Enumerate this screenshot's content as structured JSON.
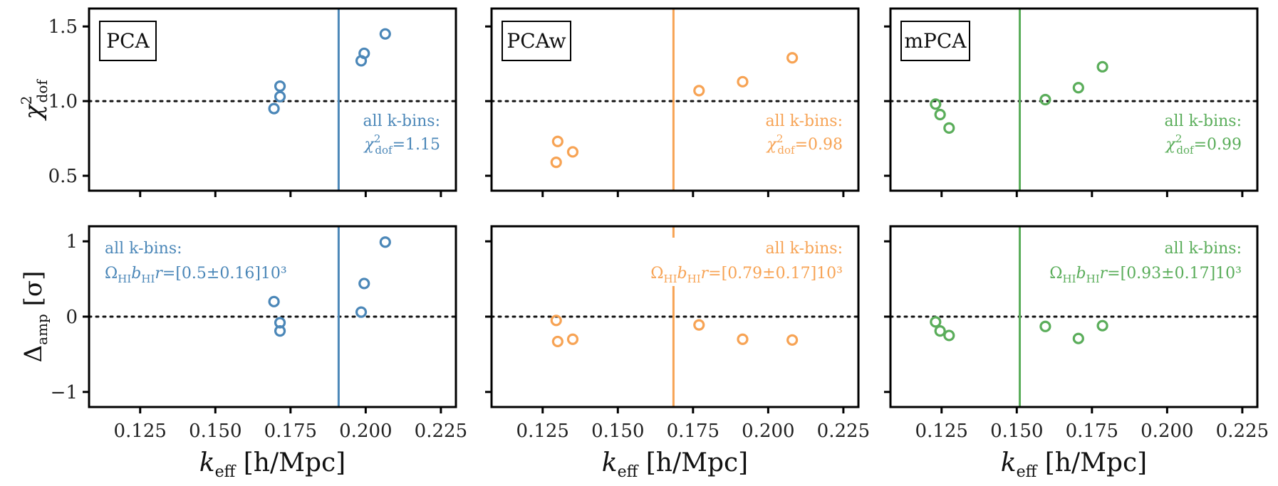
{
  "chart_data": {
    "type": "scatter",
    "figure": "2x3 grid of scatter panels with reference lines",
    "x_axis": {
      "label": "k_eff [h/Mpc]",
      "label_parts": {
        "k": "k",
        "sub": "eff",
        "rest": "[h/Mpc]"
      },
      "ticks": [
        0.125,
        0.15,
        0.175,
        0.2,
        0.225
      ],
      "tick_labels": [
        "0.125",
        "0.150",
        "0.175",
        "0.200",
        "0.225"
      ],
      "xlim": [
        0.108,
        0.23
      ]
    },
    "rows": [
      {
        "name": "chi2",
        "ylabel": "χ²_dof",
        "ylabel_parts": {
          "sym": "χ",
          "sup": "2",
          "sub": "dof"
        },
        "ylim": [
          0.4,
          1.62
        ],
        "ticks": [
          0.5,
          1.0,
          1.5
        ],
        "tick_labels": [
          "0.5",
          "1.0",
          "1.5"
        ],
        "reference_line": 1.0
      },
      {
        "name": "delta_amp",
        "ylabel": "Δ_amp [σ]",
        "ylabel_parts": {
          "sym": "Δ",
          "sub": "amp",
          "rest": "[σ]"
        },
        "ylim": [
          -1.2,
          1.2
        ],
        "ticks": [
          -1,
          0,
          1
        ],
        "tick_labels": [
          "−1",
          "0",
          "1"
        ],
        "reference_line": 0.0
      }
    ],
    "panels": [
      {
        "method": "PCA",
        "color": "#4b87b8",
        "vline": 0.191,
        "chi2": {
          "x": [
            0.1695,
            0.1715,
            0.1715,
            0.1985,
            0.1995,
            0.2065
          ],
          "y": [
            0.95,
            1.03,
            1.1,
            1.27,
            1.32,
            1.45
          ],
          "annotation_line1": "all k-bins:",
          "annotation_value": "=1.15"
        },
        "delta": {
          "x": [
            0.1695,
            0.1715,
            0.1715,
            0.1985,
            0.1995,
            0.2065
          ],
          "y": [
            0.2,
            -0.08,
            -0.19,
            0.06,
            0.44,
            0.99
          ],
          "annotation_line1": "all k-bins:",
          "annotation_value": "=[0.5±0.16]10³"
        }
      },
      {
        "method": "PCAw",
        "color": "#f7a354",
        "vline": 0.1685,
        "chi2": {
          "x": [
            0.1295,
            0.13,
            0.135,
            0.177,
            0.1915,
            0.208
          ],
          "y": [
            0.59,
            0.73,
            0.66,
            1.07,
            1.13,
            1.29
          ],
          "annotation_line1": "all k-bins:",
          "annotation_value": "=0.98"
        },
        "delta": {
          "x": [
            0.1295,
            0.13,
            0.135,
            0.177,
            0.1915,
            0.208
          ],
          "y": [
            -0.05,
            -0.33,
            -0.3,
            -0.11,
            -0.3,
            -0.31
          ],
          "annotation_line1": "all k-bins:",
          "annotation_value": "=[0.79±0.17]10³"
        }
      },
      {
        "method": "mPCA",
        "color": "#5aad5a",
        "vline": 0.151,
        "chi2": {
          "x": [
            0.123,
            0.1245,
            0.1275,
            0.1595,
            0.1705,
            0.1785
          ],
          "y": [
            0.98,
            0.91,
            0.82,
            1.01,
            1.09,
            1.23
          ],
          "annotation_line1": "all k-bins:",
          "annotation_value": "=0.99"
        },
        "delta": {
          "x": [
            0.123,
            0.1245,
            0.1275,
            0.1595,
            0.1705,
            0.1785
          ],
          "y": [
            -0.07,
            -0.19,
            -0.25,
            -0.13,
            -0.29,
            -0.12
          ],
          "annotation_line1": "all k-bins:",
          "annotation_value": "=[0.93±0.17]10³"
        }
      }
    ]
  }
}
